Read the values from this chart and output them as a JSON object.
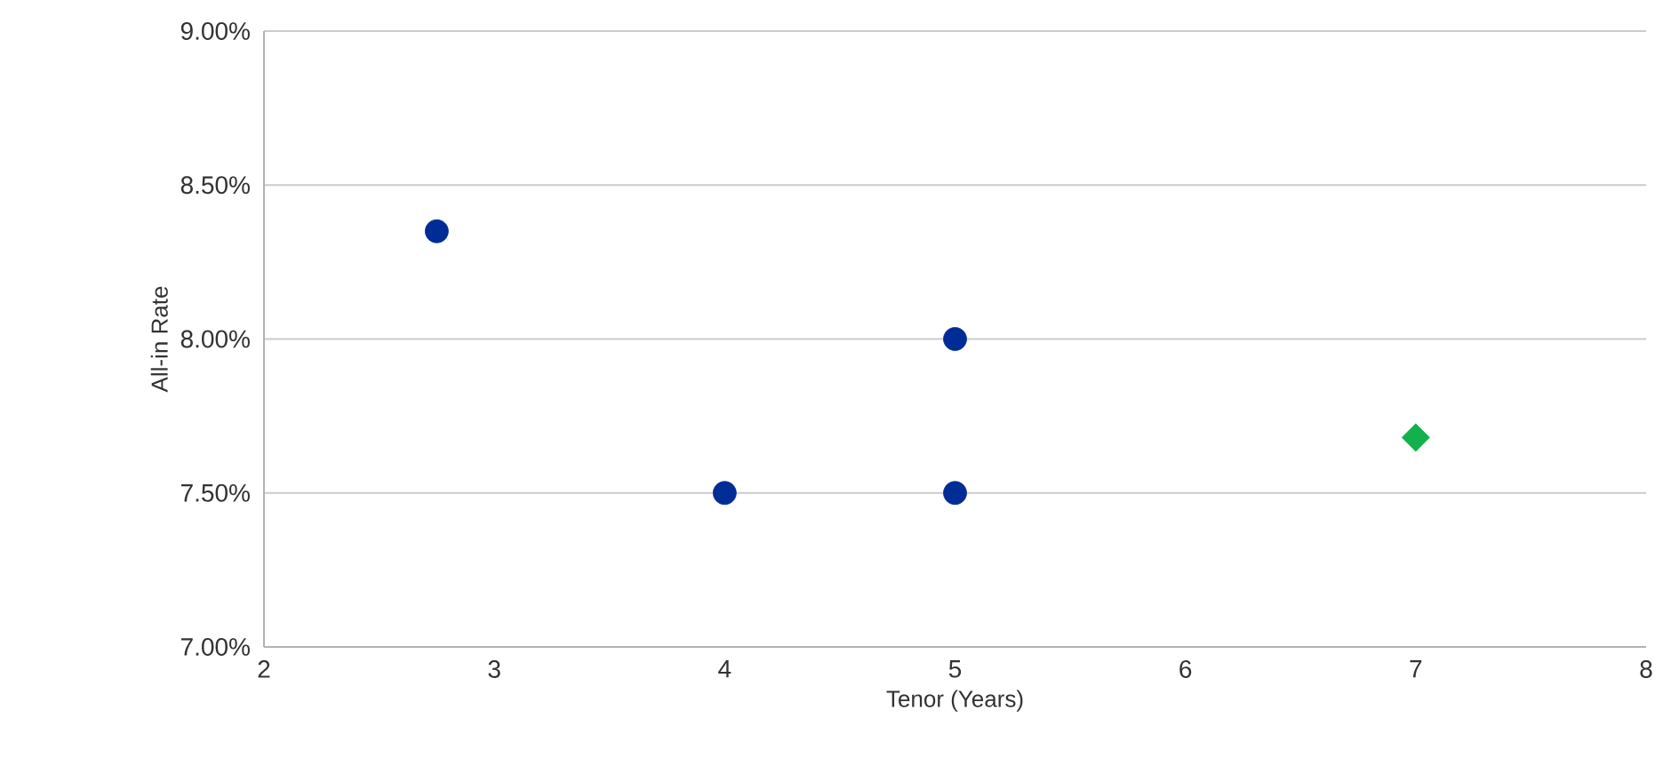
{
  "chart_data": {
    "type": "scatter",
    "xlabel": "Tenor (Years)",
    "ylabel": "All-in Rate",
    "xlim": [
      2,
      8
    ],
    "xticks": [
      2,
      3,
      4,
      5,
      6,
      7,
      8
    ],
    "ylim": [
      7.0,
      9.0
    ],
    "yticks": [
      {
        "value": 7.0,
        "label": "7.00%"
      },
      {
        "value": 7.5,
        "label": "7.50%"
      },
      {
        "value": 8.0,
        "label": "8.00%"
      },
      {
        "value": 8.5,
        "label": "8.50%"
      },
      {
        "value": 9.0,
        "label": "9.00%"
      }
    ],
    "grid": "y",
    "series": [
      {
        "color": "#002c96",
        "marker": "circle",
        "x": [
          2.75,
          4,
          5,
          5
        ],
        "values": [
          8.35,
          7.5,
          8.0,
          7.5
        ]
      },
      {
        "color": "#13b14c",
        "marker": "diamond",
        "x": [
          7
        ],
        "values": [
          7.68
        ]
      }
    ]
  }
}
